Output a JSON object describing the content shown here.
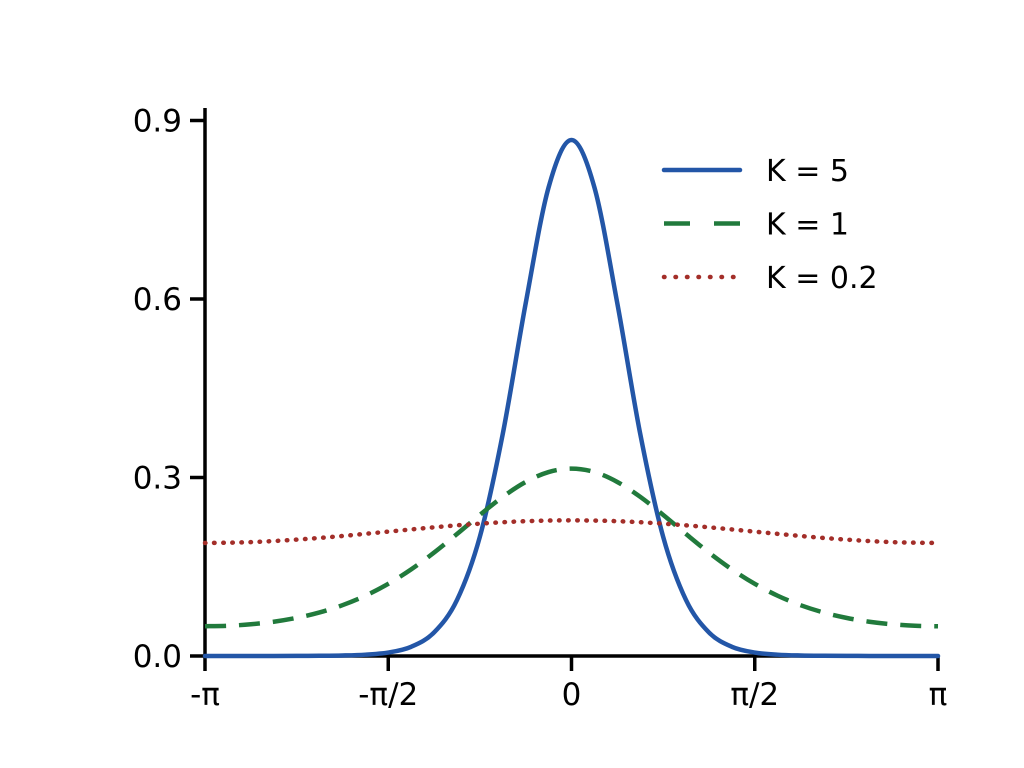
{
  "figure": {
    "background": "#ffffff"
  },
  "colors": {
    "axis": "#000000",
    "text": "#000000",
    "series_blue": "#2356a7",
    "series_green": "#217a3c",
    "series_red": "#a32e29"
  },
  "chart_data": {
    "type": "line",
    "xlabel": "",
    "ylabel": "",
    "x_unit": "pi_radians",
    "xlim": [
      -1,
      1
    ],
    "ylim": [
      0,
      0.9
    ],
    "grid": false,
    "legend_position": "upper right",
    "legend_frame": false,
    "x_ticks": [
      {
        "value": -1,
        "label": "-π"
      },
      {
        "value": -0.5,
        "label": "-π/2"
      },
      {
        "value": 0,
        "label": "0"
      },
      {
        "value": 0.5,
        "label": "π/2"
      },
      {
        "value": 1,
        "label": "π"
      }
    ],
    "y_ticks": [
      {
        "value": 0,
        "label": "0.0"
      },
      {
        "value": 0.3,
        "label": "0.3"
      },
      {
        "value": 0.6,
        "label": "0.6"
      },
      {
        "value": 0.9,
        "label": "0.9"
      }
    ],
    "x": [
      -1,
      -0.9375,
      -0.875,
      -0.8125,
      -0.75,
      -0.6875,
      -0.625,
      -0.5625,
      -0.5,
      -0.4375,
      -0.375,
      -0.3125,
      -0.25,
      -0.1875,
      -0.125,
      -0.0625,
      0,
      0.0625,
      0.125,
      0.1875,
      0.25,
      0.3125,
      0.375,
      0.4375,
      0.5,
      0.5625,
      0.625,
      0.6875,
      0.75,
      0.8125,
      0.875,
      0.9375,
      1
    ],
    "series": [
      {
        "name": "K = 5",
        "color": "#2356a7",
        "line_style": "solid",
        "values": [
          4e-05,
          4e-05,
          6e-05,
          9e-05,
          0.00017,
          0.00036,
          0.00086,
          0.0022,
          0.0058,
          0.0155,
          0.0396,
          0.094,
          0.2005,
          0.3734,
          0.5927,
          0.7876,
          0.8672,
          0.7876,
          0.5927,
          0.3734,
          0.2005,
          0.094,
          0.0396,
          0.0155,
          0.0058,
          0.0022,
          0.00086,
          0.00036,
          0.00017,
          9e-05,
          6e-05,
          4e-05,
          4e-05
        ]
      },
      {
        "name": "K = 1",
        "color": "#217a3c",
        "line_style": "dashed",
        "values": [
          0.05,
          0.0508,
          0.0533,
          0.0576,
          0.0641,
          0.0732,
          0.0854,
          0.1013,
          0.1213,
          0.1456,
          0.1738,
          0.205,
          0.2372,
          0.2675,
          0.2925,
          0.3092,
          0.315,
          0.3092,
          0.2925,
          0.2675,
          0.2372,
          0.205,
          0.1738,
          0.1456,
          0.1213,
          0.1013,
          0.0854,
          0.0732,
          0.0641,
          0.0576,
          0.0533,
          0.0508,
          0.05
        ]
      },
      {
        "name": "K = 0.2",
        "color": "#a32e29",
        "line_style": "dotted",
        "values": [
          0.19,
          0.1904,
          0.1914,
          0.1932,
          0.1956,
          0.1984,
          0.2017,
          0.2053,
          0.209,
          0.2127,
          0.2163,
          0.2196,
          0.2224,
          0.2248,
          0.2266,
          0.2276,
          0.228,
          0.2276,
          0.2266,
          0.2248,
          0.2224,
          0.2196,
          0.2163,
          0.2127,
          0.209,
          0.2053,
          0.2017,
          0.1984,
          0.1956,
          0.1932,
          0.1914,
          0.1904,
          0.19
        ]
      }
    ]
  }
}
